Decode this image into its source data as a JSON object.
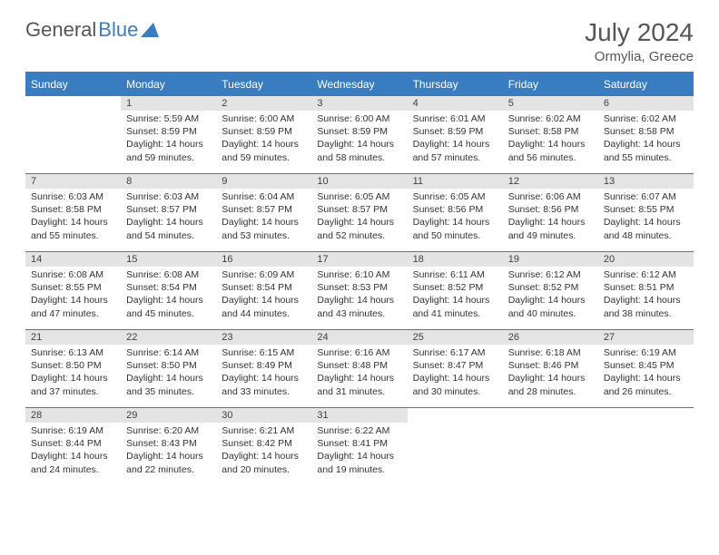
{
  "logo": {
    "part1": "General",
    "part2": "Blue"
  },
  "title": "July 2024",
  "location": "Ormylia, Greece",
  "colors": {
    "accent": "#3a7cc0",
    "header_text": "#ffffff",
    "daynum_bg": "#e4e4e4",
    "text": "#333333",
    "muted_text": "#555555"
  },
  "weekdays": [
    "Sunday",
    "Monday",
    "Tuesday",
    "Wednesday",
    "Thursday",
    "Friday",
    "Saturday"
  ],
  "weeks": [
    [
      null,
      {
        "n": "1",
        "sunrise": "Sunrise: 5:59 AM",
        "sunset": "Sunset: 8:59 PM",
        "daylight": "Daylight: 14 hours and 59 minutes."
      },
      {
        "n": "2",
        "sunrise": "Sunrise: 6:00 AM",
        "sunset": "Sunset: 8:59 PM",
        "daylight": "Daylight: 14 hours and 59 minutes."
      },
      {
        "n": "3",
        "sunrise": "Sunrise: 6:00 AM",
        "sunset": "Sunset: 8:59 PM",
        "daylight": "Daylight: 14 hours and 58 minutes."
      },
      {
        "n": "4",
        "sunrise": "Sunrise: 6:01 AM",
        "sunset": "Sunset: 8:59 PM",
        "daylight": "Daylight: 14 hours and 57 minutes."
      },
      {
        "n": "5",
        "sunrise": "Sunrise: 6:02 AM",
        "sunset": "Sunset: 8:58 PM",
        "daylight": "Daylight: 14 hours and 56 minutes."
      },
      {
        "n": "6",
        "sunrise": "Sunrise: 6:02 AM",
        "sunset": "Sunset: 8:58 PM",
        "daylight": "Daylight: 14 hours and 55 minutes."
      }
    ],
    [
      {
        "n": "7",
        "sunrise": "Sunrise: 6:03 AM",
        "sunset": "Sunset: 8:58 PM",
        "daylight": "Daylight: 14 hours and 55 minutes."
      },
      {
        "n": "8",
        "sunrise": "Sunrise: 6:03 AM",
        "sunset": "Sunset: 8:57 PM",
        "daylight": "Daylight: 14 hours and 54 minutes."
      },
      {
        "n": "9",
        "sunrise": "Sunrise: 6:04 AM",
        "sunset": "Sunset: 8:57 PM",
        "daylight": "Daylight: 14 hours and 53 minutes."
      },
      {
        "n": "10",
        "sunrise": "Sunrise: 6:05 AM",
        "sunset": "Sunset: 8:57 PM",
        "daylight": "Daylight: 14 hours and 52 minutes."
      },
      {
        "n": "11",
        "sunrise": "Sunrise: 6:05 AM",
        "sunset": "Sunset: 8:56 PM",
        "daylight": "Daylight: 14 hours and 50 minutes."
      },
      {
        "n": "12",
        "sunrise": "Sunrise: 6:06 AM",
        "sunset": "Sunset: 8:56 PM",
        "daylight": "Daylight: 14 hours and 49 minutes."
      },
      {
        "n": "13",
        "sunrise": "Sunrise: 6:07 AM",
        "sunset": "Sunset: 8:55 PM",
        "daylight": "Daylight: 14 hours and 48 minutes."
      }
    ],
    [
      {
        "n": "14",
        "sunrise": "Sunrise: 6:08 AM",
        "sunset": "Sunset: 8:55 PM",
        "daylight": "Daylight: 14 hours and 47 minutes."
      },
      {
        "n": "15",
        "sunrise": "Sunrise: 6:08 AM",
        "sunset": "Sunset: 8:54 PM",
        "daylight": "Daylight: 14 hours and 45 minutes."
      },
      {
        "n": "16",
        "sunrise": "Sunrise: 6:09 AM",
        "sunset": "Sunset: 8:54 PM",
        "daylight": "Daylight: 14 hours and 44 minutes."
      },
      {
        "n": "17",
        "sunrise": "Sunrise: 6:10 AM",
        "sunset": "Sunset: 8:53 PM",
        "daylight": "Daylight: 14 hours and 43 minutes."
      },
      {
        "n": "18",
        "sunrise": "Sunrise: 6:11 AM",
        "sunset": "Sunset: 8:52 PM",
        "daylight": "Daylight: 14 hours and 41 minutes."
      },
      {
        "n": "19",
        "sunrise": "Sunrise: 6:12 AM",
        "sunset": "Sunset: 8:52 PM",
        "daylight": "Daylight: 14 hours and 40 minutes."
      },
      {
        "n": "20",
        "sunrise": "Sunrise: 6:12 AM",
        "sunset": "Sunset: 8:51 PM",
        "daylight": "Daylight: 14 hours and 38 minutes."
      }
    ],
    [
      {
        "n": "21",
        "sunrise": "Sunrise: 6:13 AM",
        "sunset": "Sunset: 8:50 PM",
        "daylight": "Daylight: 14 hours and 37 minutes."
      },
      {
        "n": "22",
        "sunrise": "Sunrise: 6:14 AM",
        "sunset": "Sunset: 8:50 PM",
        "daylight": "Daylight: 14 hours and 35 minutes."
      },
      {
        "n": "23",
        "sunrise": "Sunrise: 6:15 AM",
        "sunset": "Sunset: 8:49 PM",
        "daylight": "Daylight: 14 hours and 33 minutes."
      },
      {
        "n": "24",
        "sunrise": "Sunrise: 6:16 AM",
        "sunset": "Sunset: 8:48 PM",
        "daylight": "Daylight: 14 hours and 31 minutes."
      },
      {
        "n": "25",
        "sunrise": "Sunrise: 6:17 AM",
        "sunset": "Sunset: 8:47 PM",
        "daylight": "Daylight: 14 hours and 30 minutes."
      },
      {
        "n": "26",
        "sunrise": "Sunrise: 6:18 AM",
        "sunset": "Sunset: 8:46 PM",
        "daylight": "Daylight: 14 hours and 28 minutes."
      },
      {
        "n": "27",
        "sunrise": "Sunrise: 6:19 AM",
        "sunset": "Sunset: 8:45 PM",
        "daylight": "Daylight: 14 hours and 26 minutes."
      }
    ],
    [
      {
        "n": "28",
        "sunrise": "Sunrise: 6:19 AM",
        "sunset": "Sunset: 8:44 PM",
        "daylight": "Daylight: 14 hours and 24 minutes."
      },
      {
        "n": "29",
        "sunrise": "Sunrise: 6:20 AM",
        "sunset": "Sunset: 8:43 PM",
        "daylight": "Daylight: 14 hours and 22 minutes."
      },
      {
        "n": "30",
        "sunrise": "Sunrise: 6:21 AM",
        "sunset": "Sunset: 8:42 PM",
        "daylight": "Daylight: 14 hours and 20 minutes."
      },
      {
        "n": "31",
        "sunrise": "Sunrise: 6:22 AM",
        "sunset": "Sunset: 8:41 PM",
        "daylight": "Daylight: 14 hours and 19 minutes."
      },
      null,
      null,
      null
    ]
  ]
}
